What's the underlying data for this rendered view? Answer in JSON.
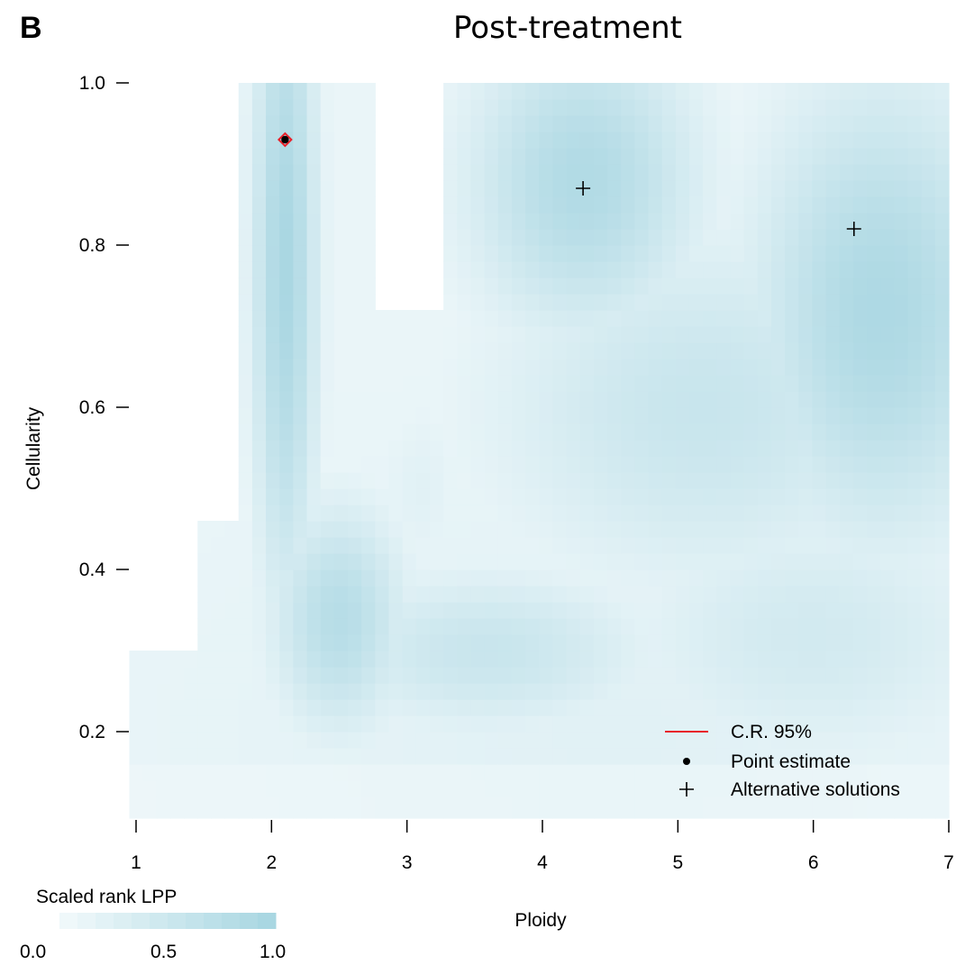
{
  "chart_data": {
    "type": "heatmap",
    "panel_label": "B",
    "title": "Post-treatment",
    "xlabel": "Ploidy",
    "ylabel": "Cellularity",
    "xlim": [
      1,
      7
    ],
    "ylim": [
      0.1,
      1.0
    ],
    "x_ticks": [
      1,
      2,
      3,
      4,
      5,
      6,
      7
    ],
    "y_ticks": [
      0.2,
      0.4,
      0.6,
      0.8,
      1.0
    ],
    "x_tick_labels": [
      "1",
      "2",
      "3",
      "4",
      "5",
      "6",
      "7"
    ],
    "y_tick_labels": [
      "0.2",
      "0.4",
      "0.6",
      "0.8",
      "1.0"
    ],
    "color_low": "#f2f9fb",
    "color_high": "#a6d5e1",
    "colorbar": {
      "title": "Scaled rank LPP",
      "min_label": "0.0",
      "mid_label": "0.5",
      "max_label": "1.0",
      "range": [
        0,
        1
      ]
    },
    "point_estimate": {
      "ploidy": 2.1,
      "cellularity": 0.93
    },
    "confidence_region_color": "#e8202a",
    "alternative_solutions": [
      {
        "ploidy": 4.3,
        "cellularity": 0.87
      },
      {
        "ploidy": 6.3,
        "cellularity": 0.82
      }
    ],
    "legend": {
      "position": "bottom-right",
      "items": [
        {
          "label": "C.R. 95%",
          "symbol": "line"
        },
        {
          "label": "Point estimate",
          "symbol": "dot"
        },
        {
          "label": "Alternative solutions",
          "symbol": "plus"
        }
      ]
    }
  }
}
